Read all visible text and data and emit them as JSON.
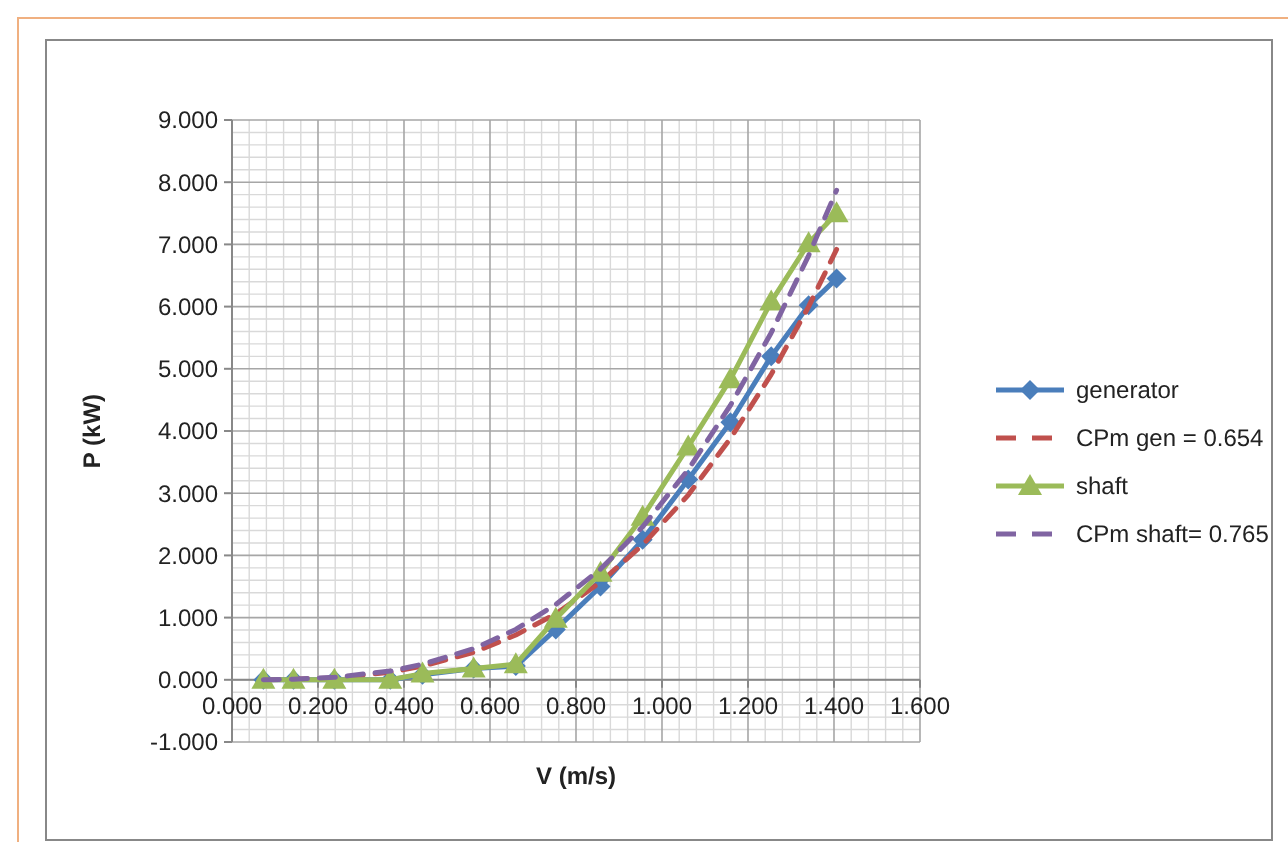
{
  "chart_data": {
    "type": "line",
    "xlabel": "V (m/s)",
    "ylabel": "P (kW)",
    "xlim": [
      0,
      1.6
    ],
    "xticks": [
      {
        "value": 0,
        "label": "0.000"
      },
      {
        "value": 0.2,
        "label": "0.200"
      },
      {
        "value": 0.4,
        "label": "0.400"
      },
      {
        "value": 0.6,
        "label": "0.600"
      },
      {
        "value": 0.8,
        "label": "0.800"
      },
      {
        "value": 1,
        "label": "1.000"
      },
      {
        "value": 1.2,
        "label": "1.200"
      },
      {
        "value": 1.4,
        "label": "1.400"
      },
      {
        "value": 1.6,
        "label": "1.600"
      }
    ],
    "ylim": [
      -1,
      9
    ],
    "yticks": [
      {
        "value": -1,
        "label": "-1.000"
      },
      {
        "value": 0,
        "label": "0.000"
      },
      {
        "value": 1,
        "label": "1.000"
      },
      {
        "value": 2,
        "label": "2.000"
      },
      {
        "value": 3,
        "label": "3.000"
      },
      {
        "value": 4,
        "label": "4.000"
      },
      {
        "value": 5,
        "label": "5.000"
      },
      {
        "value": 6,
        "label": "6.000"
      },
      {
        "value": 7,
        "label": "7.000"
      },
      {
        "value": 8,
        "label": "8.000"
      },
      {
        "value": 9,
        "label": "9.000"
      }
    ],
    "grid": true,
    "legend": "right",
    "x": [
      0.073,
      0.143,
      0.238,
      0.368,
      0.443,
      0.562,
      0.66,
      0.753,
      0.857,
      0.955,
      1.061,
      1.159,
      1.254,
      1.341,
      1.406
    ],
    "series": [
      {
        "name": "generator",
        "color": "#4a7ebb",
        "marker": "diamond",
        "line_style": "solid",
        "values": [
          0,
          0,
          0,
          0,
          0.08,
          0.18,
          0.22,
          0.81,
          1.5,
          2.25,
          3.22,
          4.14,
          5.2,
          6.02,
          6.45
        ]
      },
      {
        "name": "CPm gen = 0.654",
        "color": "#c0504d",
        "marker": "none",
        "line_style": "dashed",
        "values": [
          0,
          0.01,
          0.03,
          0.12,
          0.22,
          0.44,
          0.72,
          1.06,
          1.57,
          2.17,
          2.97,
          3.88,
          4.91,
          6,
          6.92
        ]
      },
      {
        "name": "shaft",
        "color": "#9bbb59",
        "marker": "triangle",
        "line_style": "solid",
        "values": [
          0,
          0,
          0,
          0,
          0.1,
          0.18,
          0.25,
          0.98,
          1.72,
          2.62,
          3.75,
          4.83,
          6.08,
          7.02,
          7.5
        ]
      },
      {
        "name": "CPm shaft= 0.765",
        "color": "#8064a2",
        "marker": "none",
        "line_style": "dashed",
        "values": [
          0,
          0.01,
          0.04,
          0.14,
          0.25,
          0.5,
          0.81,
          1.21,
          1.78,
          2.46,
          3.38,
          4.41,
          5.58,
          6.82,
          7.87
        ]
      }
    ]
  }
}
